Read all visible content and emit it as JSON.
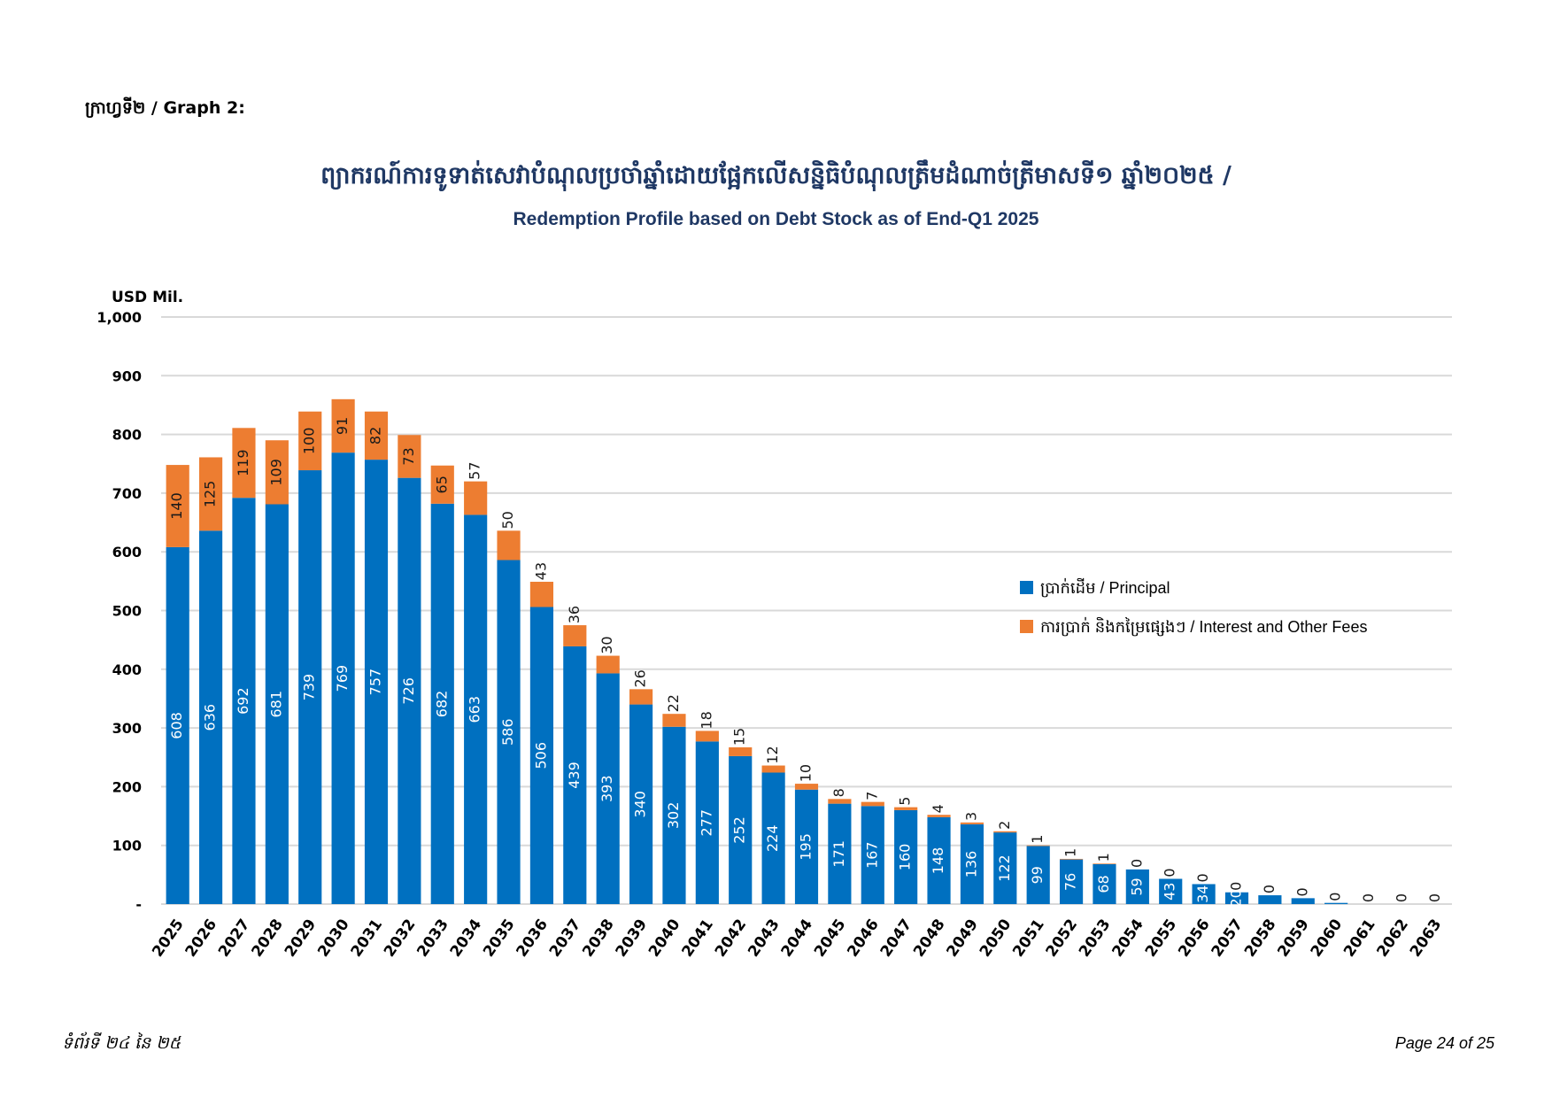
{
  "page": {
    "graph_label": "ក្រាហ្វទី២ / Graph 2:",
    "title_km": "ព្យាករណ៍ការទូទាត់សេវាបំណុលប្រចាំឆ្នាំដោយផ្អែកលើសន្និធិបំណុលត្រឹមដំណាច់ត្រីមាសទី១ ឆ្នាំ២០២៥ /",
    "title_en": "Redemption Profile based on Debt Stock as of End-Q1 2025",
    "footer_left": "ទំព័រទី ២៤ នៃ ២៥",
    "footer_right": "Page 24 of 25"
  },
  "chart_data": {
    "type": "bar",
    "stacked": true,
    "ylabel": "USD Mil.",
    "ylim": [
      0,
      1000
    ],
    "yticks": [
      0,
      100,
      200,
      300,
      400,
      500,
      600,
      700,
      800,
      900,
      1000
    ],
    "ytick_labels": [
      "-",
      "100",
      "200",
      "300",
      "400",
      "500",
      "600",
      "700",
      "800",
      "900",
      "1,000"
    ],
    "grid": true,
    "legend_position": "right",
    "colors": {
      "principal": "#0070C0",
      "interest": "#ED7D31",
      "grid": "#D9D9D9"
    },
    "categories": [
      "2025",
      "2026",
      "2027",
      "2028",
      "2029",
      "2030",
      "2031",
      "2032",
      "2033",
      "2034",
      "2035",
      "2036",
      "2037",
      "2038",
      "2039",
      "2040",
      "2041",
      "2042",
      "2043",
      "2044",
      "2045",
      "2046",
      "2047",
      "2048",
      "2049",
      "2050",
      "2051",
      "2052",
      "2053",
      "2054",
      "2055",
      "2056",
      "2057",
      "2058",
      "2059",
      "2060",
      "2061",
      "2062",
      "2063"
    ],
    "series": [
      {
        "name": "ប្រាក់ដើម / Principal",
        "values": [
          608,
          636,
          692,
          681,
          739,
          769,
          757,
          726,
          682,
          663,
          586,
          506,
          439,
          393,
          340,
          302,
          277,
          252,
          224,
          195,
          171,
          167,
          160,
          148,
          136,
          122,
          99,
          76,
          68,
          59,
          43,
          34,
          20,
          15,
          10,
          2,
          0,
          0,
          0
        ],
        "labels": [
          "608",
          "636",
          "692",
          "681",
          "739",
          "769",
          "757",
          "726",
          "682",
          "663",
          "586",
          "506",
          "439",
          "393",
          "340",
          "302",
          "277",
          "252",
          "224",
          "195",
          "171",
          "167",
          "160",
          "148",
          "136",
          "122",
          "99",
          "76",
          "68",
          "59",
          "43",
          "34",
          "20",
          "",
          "",
          "",
          "",
          "",
          ""
        ]
      },
      {
        "name": "ការប្រាក់ និងកម្រៃផ្សេងៗ / Interest and Other Fees",
        "values": [
          140,
          125,
          119,
          109,
          100,
          91,
          82,
          73,
          65,
          57,
          50,
          43,
          36,
          30,
          26,
          22,
          18,
          15,
          12,
          10,
          8,
          7,
          5,
          4,
          3,
          2,
          1,
          1,
          1,
          0,
          0,
          0,
          0,
          0,
          0,
          0,
          0,
          0,
          0
        ],
        "labels": [
          "140",
          "125",
          "119",
          "109",
          "100",
          "91",
          "82",
          "73",
          "65",
          "57",
          "50",
          "43",
          "36",
          "30",
          "26",
          "22",
          "18",
          "15",
          "12",
          "10",
          "8",
          "7",
          "5",
          "4",
          "3",
          "2",
          "1",
          "1",
          "1",
          "0",
          "0",
          "0",
          "0",
          "0",
          "0",
          "0",
          "0",
          "0",
          "0"
        ]
      }
    ]
  }
}
